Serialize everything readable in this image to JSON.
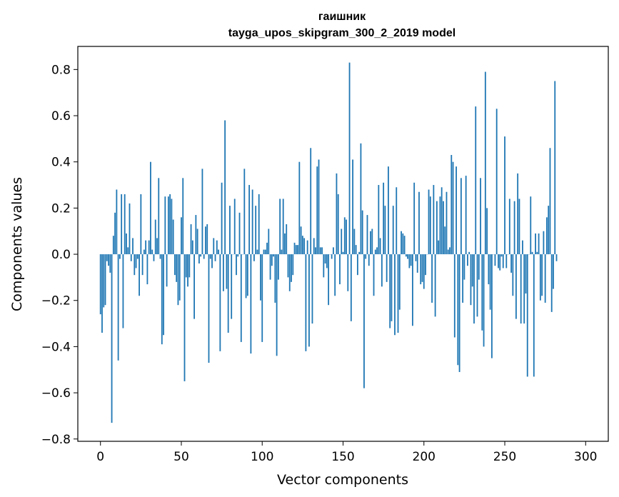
{
  "chart_data": {
    "type": "bar",
    "title": "гаишник",
    "subtitle": "tayga_upos_skipgram_300_2_2019 model",
    "xlabel": "Vector components",
    "ylabel": "Components values",
    "xlim": [
      -14,
      314
    ],
    "ylim": [
      -0.81,
      0.9
    ],
    "xticks": [
      0,
      50,
      100,
      150,
      200,
      250,
      300
    ],
    "yticks": [
      -0.8,
      -0.6,
      -0.4,
      -0.2,
      0.0,
      0.2,
      0.4,
      0.6,
      0.8
    ],
    "ytick_labels": [
      "−0.8",
      "−0.6",
      "−0.4",
      "−0.2",
      "0.0",
      "0.2",
      "0.4",
      "0.6",
      "0.8"
    ],
    "bar_color": "#1f77b4",
    "values": [
      -0.26,
      -0.34,
      -0.23,
      -0.22,
      -0.03,
      -0.05,
      -0.08,
      -0.73,
      0.08,
      0.18,
      0.28,
      -0.46,
      -0.02,
      0.26,
      -0.32,
      0.26,
      0.09,
      0.03,
      0.22,
      -0.03,
      0.07,
      -0.09,
      -0.06,
      -0.02,
      -0.18,
      0.26,
      -0.09,
      0.02,
      0.06,
      -0.13,
      0.06,
      0.4,
      0.02,
      -0.03,
      0.15,
      0.07,
      0.33,
      -0.02,
      -0.39,
      -0.35,
      0.25,
      -0.14,
      0.25,
      0.26,
      0.24,
      0.15,
      -0.09,
      -0.12,
      -0.22,
      -0.2,
      0.16,
      0.33,
      -0.55,
      -0.1,
      -0.14,
      -0.1,
      0.13,
      0.06,
      -0.28,
      0.17,
      0.11,
      -0.04,
      -0.01,
      0.37,
      -0.02,
      0.12,
      0.13,
      -0.47,
      -0.02,
      -0.06,
      0.07,
      -0.03,
      0.06,
      0.02,
      -0.42,
      0.31,
      -0.16,
      0.58,
      -0.15,
      -0.34,
      0.21,
      -0.28,
      0.0,
      0.24,
      -0.09,
      -0.01,
      0.18,
      -0.38,
      0.0,
      0.37,
      -0.19,
      -0.18,
      0.3,
      -0.43,
      0.28,
      -0.03,
      0.21,
      0.02,
      0.26,
      -0.2,
      -0.38,
      0.02,
      0.02,
      0.05,
      0.11,
      -0.11,
      -0.05,
      -0.01,
      -0.21,
      -0.44,
      -0.11,
      0.24,
      0.02,
      0.24,
      0.09,
      0.13,
      -0.1,
      -0.16,
      -0.12,
      -0.09,
      0.05,
      0.04,
      0.04,
      0.4,
      0.12,
      0.08,
      0.07,
      -0.42,
      0.06,
      -0.4,
      0.46,
      -0.3,
      0.07,
      0.03,
      0.38,
      0.41,
      0.03,
      0.03,
      -0.1,
      -0.04,
      -0.06,
      -0.22,
      0.0,
      -0.02,
      0.03,
      -0.18,
      0.35,
      0.26,
      -0.13,
      0.11,
      0.01,
      0.16,
      0.15,
      -0.16,
      0.83,
      -0.29,
      0.41,
      0.11,
      0.04,
      -0.09,
      0.01,
      0.48,
      0.19,
      -0.58,
      -0.02,
      0.17,
      -0.05,
      0.1,
      0.11,
      -0.18,
      0.02,
      0.03,
      0.3,
      0.07,
      -0.14,
      0.31,
      0.21,
      -0.12,
      0.38,
      -0.32,
      -0.29,
      0.21,
      -0.35,
      0.29,
      -0.34,
      -0.24,
      0.1,
      0.09,
      0.08,
      -0.01,
      -0.02,
      -0.06,
      -0.05,
      -0.31,
      0.31,
      -0.03,
      -0.08,
      0.27,
      -0.13,
      -0.12,
      -0.15,
      -0.09,
      0.0,
      0.28,
      0.25,
      -0.21,
      0.3,
      -0.27,
      0.23,
      0.06,
      0.25,
      0.29,
      0.23,
      0.12,
      0.27,
      0.02,
      0.03,
      0.43,
      0.4,
      -0.36,
      0.38,
      -0.48,
      -0.51,
      0.33,
      -0.21,
      -0.11,
      0.34,
      -0.05,
      0.01,
      -0.22,
      -0.14,
      -0.3,
      0.64,
      -0.27,
      -0.11,
      0.33,
      -0.33,
      -0.4,
      0.79,
      0.2,
      -0.13,
      -0.24,
      -0.45,
      0.0,
      -0.05,
      0.63,
      -0.06,
      -0.07,
      -0.01,
      -0.06,
      0.51,
      -0.06,
      0.0,
      0.24,
      -0.08,
      -0.18,
      0.23,
      -0.28,
      0.35,
      0.24,
      -0.3,
      0.06,
      -0.3,
      -0.17,
      -0.53,
      0.0,
      0.25,
      0.01,
      -0.53,
      0.09,
      0.01,
      0.09,
      -0.2,
      -0.18,
      0.1,
      -0.21,
      0.16,
      0.21,
      0.46,
      -0.25,
      -0.15,
      0.75,
      -0.03
    ]
  }
}
